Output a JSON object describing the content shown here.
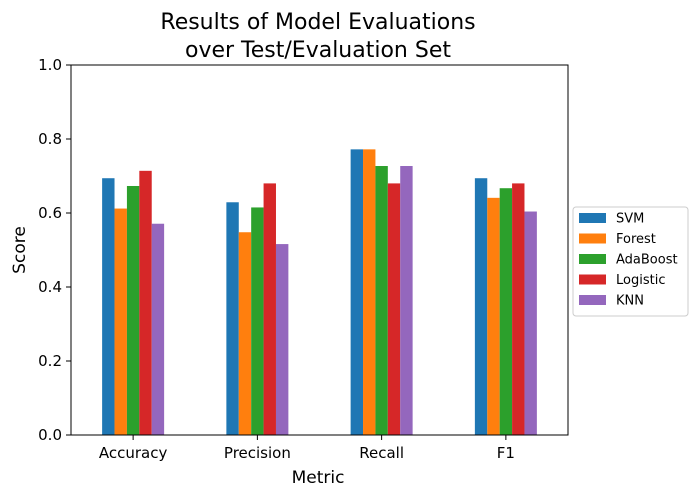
{
  "chart_data": {
    "type": "bar",
    "title_lines": [
      "Results of Model Evaluations",
      "over Test/Evaluation Set"
    ],
    "xlabel": "Metric",
    "ylabel": "Score",
    "ylim": [
      0,
      1.0
    ],
    "yticks": [
      "0.0",
      "0.2",
      "0.4",
      "0.6",
      "0.8",
      "1.0"
    ],
    "ytick_values": [
      0,
      0.2,
      0.4,
      0.6,
      0.8,
      1.0
    ],
    "categories": [
      "Accuracy",
      "Precision",
      "Recall",
      "F1"
    ],
    "series": [
      {
        "name": "SVM",
        "color": "#1f77b4",
        "values": [
          0.694,
          0.629,
          0.772,
          0.694
        ]
      },
      {
        "name": "Forest",
        "color": "#ff7f0e",
        "values": [
          0.612,
          0.548,
          0.772,
          0.641
        ]
      },
      {
        "name": "AdaBoost",
        "color": "#2ca02c",
        "values": [
          0.673,
          0.615,
          0.727,
          0.667
        ]
      },
      {
        "name": "Logistic",
        "color": "#d62728",
        "values": [
          0.714,
          0.68,
          0.68,
          0.68
        ]
      },
      {
        "name": "KNN",
        "color": "#9467bd",
        "values": [
          0.571,
          0.516,
          0.727,
          0.604
        ]
      }
    ],
    "grid": false,
    "legend_position": "center-right"
  }
}
